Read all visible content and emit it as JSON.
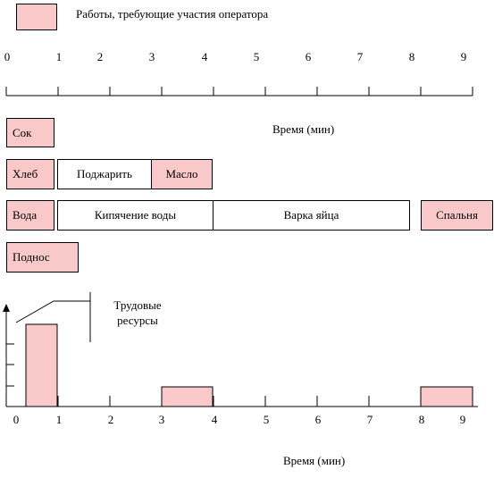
{
  "legend": {
    "label": "Работы, требующие участия оператора",
    "color": "#f9c8c8"
  },
  "top_axis": {
    "ticks": [
      "0",
      "1",
      "2",
      "3",
      "4",
      "5",
      "6",
      "7",
      "8",
      "9"
    ],
    "title": "Время (мин)"
  },
  "tasks": {
    "juice": "Сок",
    "bread": "Хлеб",
    "toast": "Поджарить",
    "butter": "Масло",
    "water": "Вода",
    "boil_water": "Кипячение воды",
    "boil_egg": "Варка яйца",
    "bedroom": "Спальня",
    "tray": "Поднос"
  },
  "resources_label": "Трудовые ресурсы",
  "bottom_axis": {
    "ticks": [
      "0",
      "1",
      "2",
      "3",
      "4",
      "5",
      "6",
      "7",
      "8",
      "9"
    ],
    "title": "Время (мин)"
  },
  "colors": {
    "operator": "#f9c8c8",
    "line": "#000000"
  }
}
